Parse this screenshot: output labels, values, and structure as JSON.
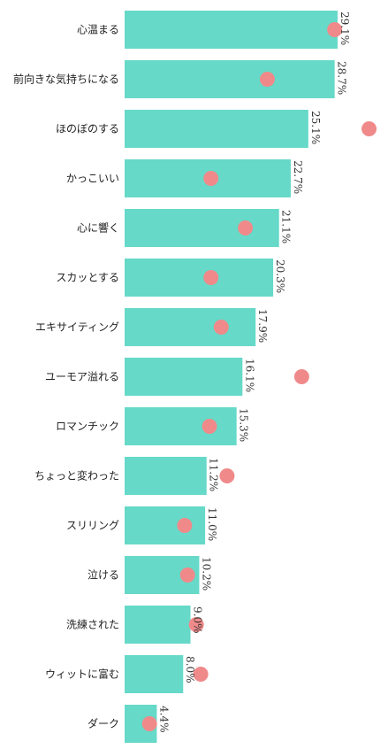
{
  "chart_data": {
    "type": "bar",
    "orientation": "horizontal",
    "categories": [
      "心温まる",
      "前向きな気持ちになる",
      "ほのぼのする",
      "かっこいい",
      "心に響く",
      "スカッとする",
      "エキサイティング",
      "ユーモア溢れる",
      "ロマンチック",
      "ちょっと変わった",
      "スリリング",
      "泣ける",
      "洗練された",
      "ウィットに富む",
      "ダーク"
    ],
    "series": [
      {
        "type": "bar",
        "values": [
          29.1,
          28.7,
          25.1,
          22.7,
          21.1,
          20.3,
          17.9,
          16.1,
          15.3,
          11.2,
          11.0,
          10.2,
          9.0,
          8.0,
          4.4
        ],
        "value_labels": [
          "29.1%",
          "28.7%",
          "25.1%",
          "22.7%",
          "21.1%",
          "20.3%",
          "17.9%",
          "16.1%",
          "15.3%",
          "11.2%",
          "11.0%",
          "10.2%",
          "9.0%",
          "8.0%",
          "4.4%"
        ]
      },
      {
        "type": "dot",
        "values": [
          28.7,
          19.5,
          33.4,
          11.8,
          16.5,
          11.8,
          13.2,
          24.2,
          11.6,
          14.0,
          8.2,
          8.6,
          9.8,
          10.4,
          3.4
        ]
      }
    ],
    "xlim": [
      0,
      35
    ],
    "colors": {
      "bar": "#66d9c8",
      "dot": "#f08a8a"
    },
    "grid": false,
    "legend": "none"
  }
}
